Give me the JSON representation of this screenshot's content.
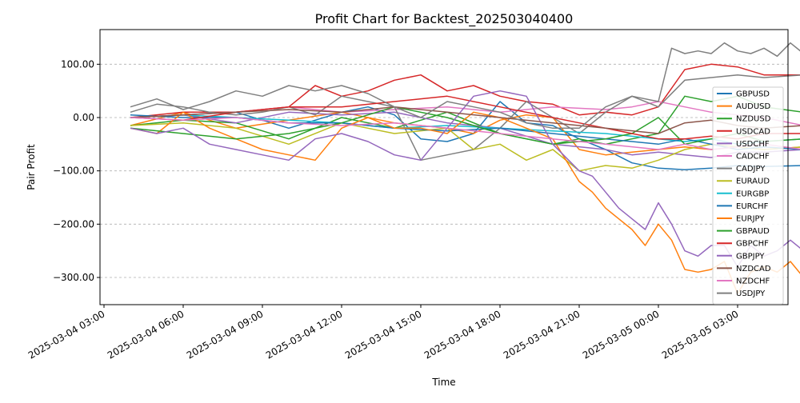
{
  "chart_data": {
    "type": "line",
    "title": "Profit Chart for Backtest_202503040400",
    "xlabel": "Time",
    "ylabel": "Pair Profit",
    "x_ticks": [
      "2025-03-04 03:00",
      "2025-03-04 06:00",
      "2025-03-04 09:00",
      "2025-03-04 12:00",
      "2025-03-04 15:00",
      "2025-03-04 18:00",
      "2025-03-04 21:00",
      "2025-03-05 00:00",
      "2025-03-05 03:00"
    ],
    "x_range_hours": [
      3.0,
      30.0
    ],
    "y_ticks": [
      100,
      0,
      -100,
      -200,
      -300
    ],
    "y_tick_labels": [
      "100.00",
      "0.00",
      "−100.00",
      "−200.00",
      "−300.00"
    ],
    "ylim": [
      -350,
      164
    ],
    "grid": "y-dashed",
    "legend_position": "right",
    "series": [
      {
        "name": "GBPUSD",
        "color": "#1f77b4",
        "x": [
          4,
          6,
          8,
          10,
          12,
          13,
          14,
          15,
          16,
          17,
          18,
          19,
          20,
          21,
          22,
          23,
          24,
          25,
          26,
          27,
          28,
          29.5
        ],
        "values": [
          0,
          5,
          10,
          -20,
          10,
          20,
          5,
          -40,
          -45,
          -30,
          30,
          -10,
          -15,
          -40,
          -60,
          -85,
          -95,
          -98,
          -95,
          -90,
          -92,
          -90
        ]
      },
      {
        "name": "AUDUSD",
        "color": "#ff7f0e",
        "x": [
          4,
          6,
          8,
          10,
          12,
          14,
          16,
          17,
          18,
          19,
          20,
          21,
          22,
          23,
          24,
          25,
          26,
          27,
          28,
          29.5
        ],
        "values": [
          -15,
          10,
          -20,
          -5,
          10,
          -10,
          -20,
          -30,
          -5,
          5,
          0,
          -60,
          -70,
          -65,
          -60,
          -55,
          -60,
          -55,
          -60,
          -55
        ]
      },
      {
        "name": "NZDUSD",
        "color": "#2ca02c",
        "x": [
          4,
          6,
          8,
          10,
          12,
          14,
          16,
          18,
          20,
          21,
          22,
          23,
          24,
          25,
          26,
          27,
          28,
          29.5
        ],
        "values": [
          -15,
          -5,
          -10,
          -40,
          0,
          -20,
          10,
          -30,
          -50,
          -40,
          -50,
          -40,
          -30,
          40,
          30,
          40,
          20,
          10
        ]
      },
      {
        "name": "USDCAD",
        "color": "#d62728",
        "x": [
          4,
          6,
          8,
          10,
          11,
          12,
          13,
          14,
          15,
          16,
          17,
          18,
          19,
          20,
          21,
          22,
          23,
          24,
          25,
          26,
          27,
          28,
          29.5
        ],
        "values": [
          0,
          10,
          10,
          20,
          60,
          40,
          50,
          70,
          80,
          50,
          60,
          40,
          30,
          25,
          5,
          10,
          5,
          20,
          90,
          100,
          95,
          80,
          80
        ]
      },
      {
        "name": "USDCHF",
        "color": "#9467bd",
        "x": [
          4,
          6,
          8,
          10,
          12,
          14,
          16,
          18,
          20,
          22,
          23,
          24,
          25,
          26,
          27,
          28,
          29.5
        ],
        "values": [
          0,
          5,
          -10,
          10,
          5,
          10,
          -10,
          -20,
          -50,
          -60,
          -70,
          -65,
          -70,
          -75,
          -65,
          -65,
          -60
        ]
      },
      {
        "name": "CADCHF",
        "color": "#e377c2",
        "x": [
          4,
          6,
          8,
          10,
          12,
          14,
          16,
          18,
          20,
          22,
          23,
          24,
          25,
          26,
          27,
          28,
          29.5
        ],
        "values": [
          0,
          5,
          10,
          20,
          10,
          15,
          20,
          10,
          20,
          15,
          20,
          30,
          20,
          10,
          5,
          0,
          -15
        ]
      },
      {
        "name": "CADJPY",
        "color": "#7f7f7f",
        "x": [
          4,
          5,
          6,
          7,
          8,
          9,
          10,
          11,
          12,
          13,
          14,
          15,
          16,
          17,
          18,
          19,
          20,
          21,
          22,
          23,
          24,
          25,
          26,
          27,
          28,
          29.5
        ],
        "values": [
          10,
          25,
          20,
          10,
          5,
          10,
          20,
          5,
          40,
          30,
          20,
          -80,
          -70,
          -60,
          -20,
          30,
          0,
          -30,
          10,
          40,
          20,
          70,
          75,
          80,
          75,
          80
        ]
      },
      {
        "name": "EURAUD",
        "color": "#bcbd22",
        "x": [
          4,
          6,
          8,
          10,
          12,
          14,
          16,
          17,
          18,
          19,
          20,
          21,
          22,
          23,
          24,
          25,
          26,
          27,
          28,
          29.5
        ],
        "values": [
          -15,
          -10,
          -20,
          -50,
          -10,
          -30,
          -20,
          -60,
          -50,
          -80,
          -60,
          -100,
          -90,
          -95,
          -80,
          -60,
          -50,
          -55,
          -60,
          -55
        ]
      },
      {
        "name": "EURGBP",
        "color": "#17becf",
        "x": [
          4,
          6,
          8,
          10,
          12,
          14,
          16,
          18,
          20,
          22,
          24,
          25,
          26,
          27,
          28,
          29.5
        ],
        "values": [
          0,
          5,
          0,
          -5,
          -10,
          -20,
          -15,
          -20,
          -25,
          -30,
          -40,
          -45,
          -40,
          -50,
          -45,
          -40
        ]
      },
      {
        "name": "EURCHF",
        "color": "#1f77b4",
        "x": [
          4,
          6,
          8,
          10,
          12,
          14,
          16,
          18,
          20,
          22,
          24,
          25,
          26,
          27,
          28,
          29.5
        ],
        "values": [
          5,
          0,
          0,
          -10,
          -10,
          -20,
          -25,
          -20,
          -30,
          -40,
          -50,
          -40,
          -50,
          -60,
          -55,
          -60
        ]
      },
      {
        "name": "EURJPY",
        "color": "#ff7f0e",
        "x": [
          4,
          5,
          6,
          7,
          8,
          9,
          10,
          11,
          12,
          13,
          14,
          15,
          16,
          17,
          18,
          19,
          20,
          21,
          21.5,
          22,
          22.5,
          23,
          23.5,
          24,
          24.5,
          25,
          25.5,
          26,
          26.5,
          27,
          27.5,
          28,
          28.5,
          29,
          29.5
        ],
        "values": [
          -20,
          -30,
          10,
          -20,
          -40,
          -60,
          -70,
          -80,
          -20,
          0,
          -20,
          -20,
          -30,
          10,
          0,
          -20,
          -40,
          -120,
          -140,
          -170,
          -190,
          -210,
          -240,
          -200,
          -230,
          -285,
          -290,
          -285,
          -270,
          -330,
          -290,
          -280,
          -290,
          -270,
          -300
        ]
      },
      {
        "name": "GBPAUD",
        "color": "#2ca02c",
        "x": [
          4,
          6,
          8,
          10,
          12,
          14,
          16,
          18,
          20,
          22,
          23,
          24,
          25,
          26,
          27,
          28,
          29.5
        ],
        "values": [
          -20,
          -30,
          -40,
          -30,
          -10,
          20,
          0,
          -30,
          -50,
          -40,
          -30,
          0,
          -50,
          -40,
          -30,
          -45,
          -40
        ]
      },
      {
        "name": "GBPCHF",
        "color": "#d62728",
        "x": [
          4,
          6,
          8,
          10,
          12,
          14,
          16,
          18,
          20,
          21,
          22,
          23,
          24,
          25,
          26,
          27,
          28,
          29.5
        ],
        "values": [
          0,
          -5,
          10,
          20,
          20,
          30,
          40,
          20,
          0,
          -10,
          -20,
          -30,
          -40,
          -40,
          -35,
          -40,
          -30,
          -30
        ]
      },
      {
        "name": "GBPJPY",
        "color": "#9467bd",
        "x": [
          4,
          5,
          6,
          7,
          8,
          9,
          10,
          11,
          12,
          13,
          14,
          15,
          16,
          17,
          18,
          19,
          20,
          21,
          21.5,
          22,
          22.5,
          23,
          23.5,
          24,
          24.5,
          25,
          25.5,
          26,
          26.5,
          27,
          27.5,
          28,
          28.5,
          29,
          29.5
        ],
        "values": [
          -20,
          -30,
          -20,
          -50,
          -60,
          -70,
          -80,
          -40,
          -30,
          -45,
          -70,
          -80,
          -20,
          40,
          50,
          40,
          -50,
          -100,
          -110,
          -140,
          -170,
          -190,
          -210,
          -160,
          -200,
          -250,
          -260,
          -240,
          -240,
          -280,
          -240,
          -260,
          -250,
          -230,
          -250
        ]
      },
      {
        "name": "NZDCAD",
        "color": "#8c564b",
        "x": [
          4,
          6,
          8,
          10,
          12,
          14,
          16,
          18,
          20,
          22,
          24,
          25,
          26,
          27,
          28,
          29.5
        ],
        "values": [
          0,
          5,
          10,
          15,
          10,
          20,
          10,
          0,
          -10,
          -20,
          -30,
          -10,
          -5,
          -15,
          -20,
          -15
        ]
      },
      {
        "name": "NZDCHF",
        "color": "#e377c2",
        "x": [
          4,
          6,
          8,
          10,
          12,
          14,
          16,
          18,
          20,
          22,
          24,
          25,
          26,
          27,
          28,
          29.5
        ],
        "values": [
          0,
          -5,
          0,
          -10,
          -15,
          -10,
          -20,
          -30,
          -40,
          -50,
          -60,
          -50,
          -60,
          -55,
          -50,
          -60
        ]
      },
      {
        "name": "USDJPY",
        "color": "#7f7f7f",
        "x": [
          4,
          5,
          6,
          7,
          8,
          9,
          10,
          11,
          12,
          13,
          14,
          15,
          16,
          17,
          18,
          19,
          20,
          21,
          22,
          23,
          24,
          24.5,
          25,
          25.5,
          26,
          26.5,
          27,
          27.5,
          28,
          28.5,
          29,
          29.5
        ],
        "values": [
          20,
          35,
          15,
          30,
          50,
          40,
          60,
          50,
          60,
          45,
          20,
          0,
          30,
          20,
          10,
          -10,
          -20,
          -20,
          20,
          40,
          30,
          130,
          120,
          125,
          120,
          140,
          125,
          120,
          130,
          115,
          140,
          120
        ]
      }
    ]
  }
}
